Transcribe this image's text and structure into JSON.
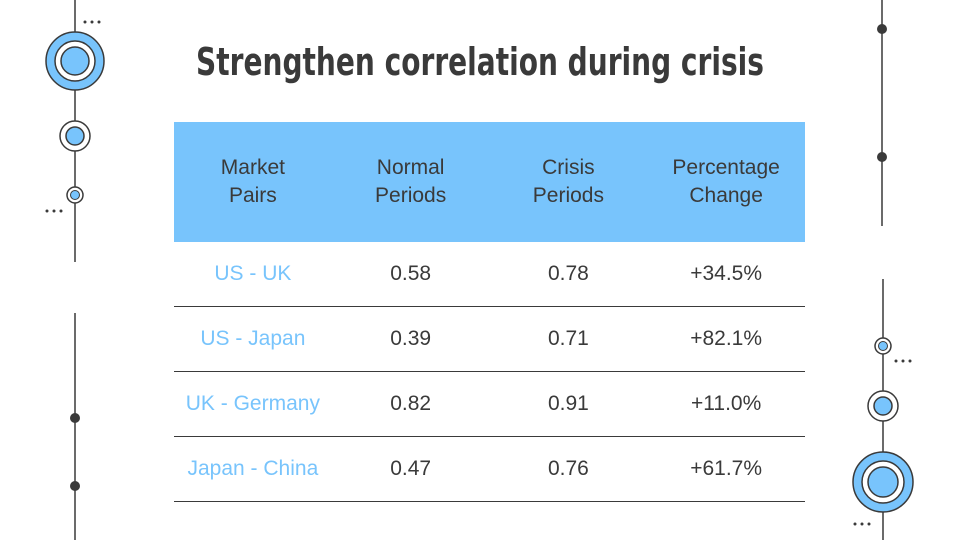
{
  "title": "Strengthen correlation during crisis",
  "table": {
    "headers": [
      [
        "Market",
        "Pairs"
      ],
      [
        "Normal",
        "Periods"
      ],
      [
        "Crisis",
        "Periods"
      ],
      [
        "Percentage",
        "Change"
      ]
    ],
    "rows": [
      [
        "US - UK",
        "0.58",
        "0.78",
        "+34.5%"
      ],
      [
        "US - Japan",
        "0.39",
        "0.71",
        "+82.1%"
      ],
      [
        "UK - Germany",
        "0.82",
        "0.91",
        "+11.0%"
      ],
      [
        "Japan - China",
        "0.47",
        "0.76",
        "+61.7%"
      ]
    ]
  },
  "colors": {
    "accent": "#78c4fc",
    "text": "#3a3a3a"
  }
}
